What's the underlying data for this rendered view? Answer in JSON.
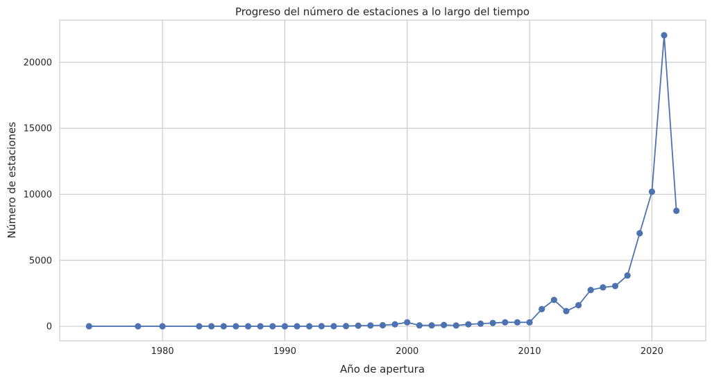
{
  "chart_data": {
    "type": "line",
    "title": "Progreso del número de estaciones a lo largo del tiempo",
    "xlabel": "Año de apertura",
    "ylabel": "Número de estaciones",
    "xlim": [
      1971.6,
      2024.4
    ],
    "ylim": [
      -1100,
      23200
    ],
    "x_ticks": [
      1980,
      1990,
      2000,
      2010,
      2020
    ],
    "y_ticks": [
      0,
      5000,
      10000,
      15000,
      20000
    ],
    "grid": true,
    "marker": "circle",
    "color": "#4c72b0",
    "series": [
      {
        "x": [
          1974,
          1978,
          1980,
          1983,
          1984,
          1985,
          1986,
          1987,
          1988,
          1989,
          1990,
          1991,
          1992,
          1993,
          1994,
          1995,
          1996,
          1997,
          1998,
          1999,
          2000,
          2001,
          2002,
          2003,
          2004,
          2005,
          2006,
          2007,
          2008,
          2009,
          2010,
          2011,
          2012,
          2013,
          2014,
          2015,
          2016,
          2017,
          2018,
          2019,
          2020,
          2021,
          2022
        ],
        "values": [
          5,
          5,
          5,
          5,
          5,
          5,
          5,
          5,
          5,
          5,
          5,
          5,
          5,
          10,
          10,
          15,
          50,
          60,
          80,
          150,
          300,
          70,
          70,
          100,
          60,
          150,
          200,
          250,
          300,
          300,
          300,
          1300,
          2000,
          1150,
          1600,
          2750,
          2950,
          3050,
          3850,
          7050,
          10200,
          22050,
          8750
        ]
      }
    ]
  }
}
